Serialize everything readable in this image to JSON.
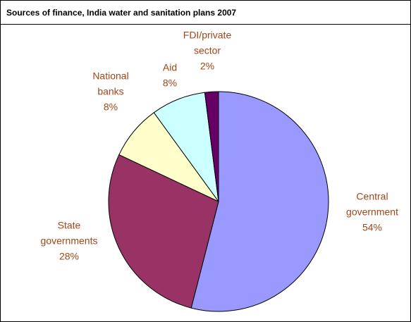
{
  "chart_data": {
    "type": "pie",
    "title": "Sources of finance, India water and sanitation plans 2007",
    "slices": [
      {
        "label_lines": [
          "Central",
          "government",
          "54%"
        ],
        "value": 54,
        "color": "#9999ff"
      },
      {
        "label_lines": [
          "State",
          "governments",
          "28%"
        ],
        "value": 28,
        "color": "#993366"
      },
      {
        "label_lines": [
          "National",
          "banks",
          "8%"
        ],
        "value": 8,
        "color": "#ffffcc"
      },
      {
        "label_lines": [
          "Aid",
          "8%"
        ],
        "value": 8,
        "color": "#ccffff"
      },
      {
        "label_lines": [
          "FDI/private",
          "sector",
          "2%"
        ],
        "value": 2,
        "color": "#660066"
      }
    ]
  }
}
